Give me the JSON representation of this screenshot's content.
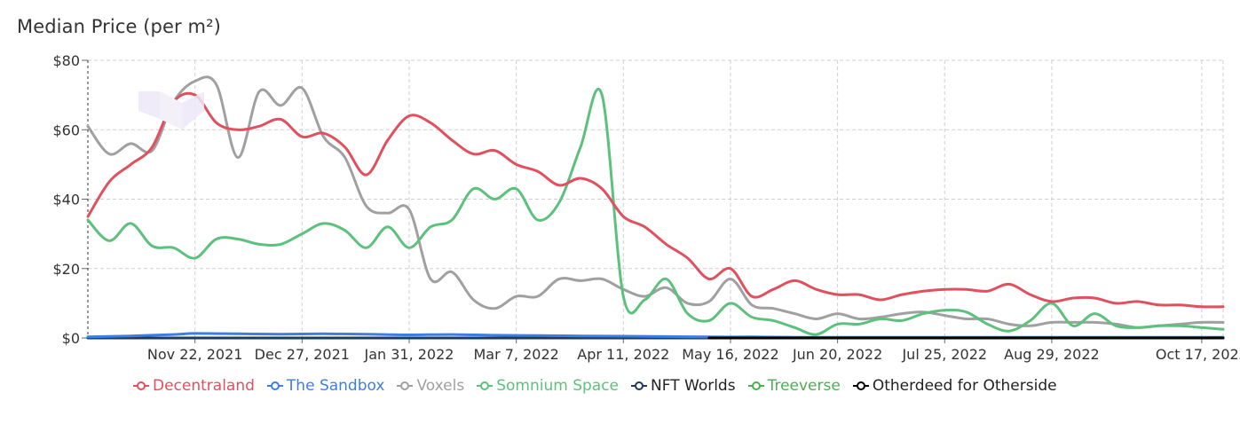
{
  "title": "Median Price (per m²)",
  "chart_data": {
    "type": "line",
    "title": "Median Price (per m²)",
    "x_tick_labels": [
      "Nov 22, 2021",
      "Dec 27, 2021",
      "Jan 31, 2022",
      "Mar 7, 2022",
      "Apr 11, 2022",
      "May 16, 2022",
      "Jun 20, 2022",
      "Jul 25, 2022",
      "Aug 29, 2022",
      "Oct 17, 2022"
    ],
    "x_tick_dates": [
      "2021-11-22",
      "2021-12-27",
      "2022-01-31",
      "2022-03-07",
      "2022-04-11",
      "2022-05-16",
      "2022-06-20",
      "2022-07-25",
      "2022-08-29",
      "2022-10-17"
    ],
    "x_range": [
      "2021-10-18",
      "2022-10-24"
    ],
    "y_ticks": [
      0,
      20,
      40,
      60,
      80
    ],
    "y_tick_labels": [
      "$0",
      "$20",
      "$40",
      "$60",
      "$80"
    ],
    "ylim": [
      0,
      80
    ],
    "grid": true,
    "legend_position": "bottom",
    "series": [
      {
        "name": "Decentraland",
        "color": "#e0505e",
        "x": [
          "2021-10-18",
          "2021-10-25",
          "2021-11-01",
          "2021-11-08",
          "2021-11-15",
          "2021-11-22",
          "2021-11-29",
          "2021-12-06",
          "2021-12-13",
          "2021-12-20",
          "2021-12-27",
          "2022-01-03",
          "2022-01-10",
          "2022-01-17",
          "2022-01-24",
          "2022-01-31",
          "2022-02-07",
          "2022-02-14",
          "2022-02-21",
          "2022-02-28",
          "2022-03-07",
          "2022-03-14",
          "2022-03-21",
          "2022-03-28",
          "2022-04-04",
          "2022-04-11",
          "2022-04-18",
          "2022-04-25",
          "2022-05-02",
          "2022-05-09",
          "2022-05-16",
          "2022-05-23",
          "2022-05-30",
          "2022-06-06",
          "2022-06-13",
          "2022-06-20",
          "2022-06-27",
          "2022-07-04",
          "2022-07-11",
          "2022-07-18",
          "2022-07-25",
          "2022-08-01",
          "2022-08-08",
          "2022-08-15",
          "2022-08-22",
          "2022-08-29",
          "2022-09-05",
          "2022-09-12",
          "2022-09-19",
          "2022-09-26",
          "2022-10-03",
          "2022-10-10",
          "2022-10-17",
          "2022-10-24"
        ],
        "y": [
          35,
          45,
          50,
          55,
          68,
          70,
          62,
          60,
          61,
          63,
          58,
          59,
          55,
          47,
          57,
          64,
          62,
          57,
          53,
          54,
          50,
          48,
          44,
          46,
          43,
          35,
          32,
          27,
          23,
          17,
          20,
          12,
          14,
          16.5,
          14,
          12.5,
          12.5,
          11,
          12.5,
          13.5,
          14,
          14,
          13.5,
          15.5,
          12.5,
          10.5,
          11.5,
          11.5,
          10,
          10.5,
          9.5,
          9.5,
          9,
          9
        ]
      },
      {
        "name": "The Sandbox",
        "color": "#3d7fe0",
        "x": [
          "2021-10-18",
          "2021-11-01",
          "2021-11-15",
          "2021-11-22",
          "2021-12-06",
          "2021-12-20",
          "2022-01-03",
          "2022-01-17",
          "2022-01-31",
          "2022-02-14",
          "2022-02-28",
          "2022-03-14",
          "2022-03-28",
          "2022-04-11",
          "2022-04-25",
          "2022-05-09",
          "2022-05-23",
          "2022-06-06",
          "2022-06-20",
          "2022-07-04",
          "2022-07-18",
          "2022-08-01",
          "2022-08-15",
          "2022-08-29",
          "2022-09-12",
          "2022-09-26",
          "2022-10-10",
          "2022-10-24"
        ],
        "y": [
          0.3,
          0.6,
          1.0,
          1.3,
          1.2,
          1.1,
          1.2,
          1.1,
          0.9,
          1.0,
          0.8,
          0.7,
          0.6,
          0.5,
          0.4,
          0.3,
          0.3,
          0.2,
          0.2,
          0.2,
          0.2,
          0.2,
          0.2,
          0.2,
          0.2,
          0.2,
          0.2,
          0.2
        ]
      },
      {
        "name": "Voxels",
        "color": "#a0a0a0",
        "x": [
          "2021-10-18",
          "2021-10-25",
          "2021-11-01",
          "2021-11-08",
          "2021-11-15",
          "2021-11-22",
          "2021-11-29",
          "2021-12-06",
          "2021-12-13",
          "2021-12-20",
          "2021-12-27",
          "2022-01-03",
          "2022-01-10",
          "2022-01-17",
          "2022-01-24",
          "2022-01-31",
          "2022-02-07",
          "2022-02-14",
          "2022-02-21",
          "2022-02-28",
          "2022-03-07",
          "2022-03-14",
          "2022-03-21",
          "2022-03-28",
          "2022-04-04",
          "2022-04-11",
          "2022-04-18",
          "2022-04-25",
          "2022-05-02",
          "2022-05-09",
          "2022-05-16",
          "2022-05-23",
          "2022-05-30",
          "2022-06-06",
          "2022-06-13",
          "2022-06-20",
          "2022-06-27",
          "2022-07-04",
          "2022-07-11",
          "2022-07-18",
          "2022-07-25",
          "2022-08-01",
          "2022-08-08",
          "2022-08-15",
          "2022-08-22",
          "2022-08-29",
          "2022-09-05",
          "2022-09-12",
          "2022-09-19",
          "2022-09-26",
          "2022-10-03",
          "2022-10-10",
          "2022-10-17",
          "2022-10-24"
        ],
        "y": [
          61,
          53,
          56,
          54,
          68,
          74,
          73,
          52,
          71,
          67,
          72,
          58,
          52,
          38,
          36,
          37,
          17,
          19,
          11,
          8.5,
          12,
          12,
          17,
          16.5,
          17,
          14,
          12,
          14.5,
          10,
          10.5,
          17,
          9.5,
          8.5,
          7,
          5.5,
          7,
          5.5,
          6,
          7,
          7.5,
          6.5,
          5.5,
          5.5,
          4,
          3.5,
          4.5,
          4.5,
          4.5,
          4,
          3,
          3.5,
          4,
          4.5,
          4.5
        ]
      },
      {
        "name": "Somnium Space",
        "color": "#5cc17c",
        "x": [
          "2021-10-18",
          "2021-10-25",
          "2021-11-01",
          "2021-11-08",
          "2021-11-15",
          "2021-11-22",
          "2021-11-29",
          "2021-12-06",
          "2021-12-13",
          "2021-12-20",
          "2021-12-27",
          "2022-01-03",
          "2022-01-10",
          "2022-01-17",
          "2022-01-24",
          "2022-01-31",
          "2022-02-07",
          "2022-02-14",
          "2022-02-21",
          "2022-02-28",
          "2022-03-07",
          "2022-03-14",
          "2022-03-21",
          "2022-03-28",
          "2022-04-04",
          "2022-04-11",
          "2022-04-18",
          "2022-04-25",
          "2022-05-02",
          "2022-05-09",
          "2022-05-16",
          "2022-05-23",
          "2022-05-30",
          "2022-06-06",
          "2022-06-13",
          "2022-06-20",
          "2022-06-27",
          "2022-07-04",
          "2022-07-11",
          "2022-07-18",
          "2022-07-25",
          "2022-08-01",
          "2022-08-08",
          "2022-08-15",
          "2022-08-22",
          "2022-08-29",
          "2022-09-05",
          "2022-09-12",
          "2022-09-19",
          "2022-09-26",
          "2022-10-03",
          "2022-10-10",
          "2022-10-17",
          "2022-10-24"
        ],
        "y": [
          34,
          28,
          33,
          26.5,
          26,
          23,
          28.5,
          28.5,
          27,
          27,
          30,
          33,
          31,
          26,
          32,
          26,
          32,
          34,
          43,
          40,
          43,
          34,
          39,
          55,
          70,
          12,
          11,
          17,
          7,
          5,
          10,
          6,
          5,
          3,
          1,
          4,
          4,
          5.5,
          5,
          7,
          8,
          7.5,
          4,
          2,
          5,
          10,
          3.5,
          7,
          3.5,
          3,
          3.5,
          3.5,
          3,
          2.5
        ]
      },
      {
        "name": "NFT Worlds",
        "color": "#1f3a5f",
        "x": [
          "2021-10-18",
          "2022-10-24"
        ],
        "y": [
          0,
          0
        ]
      },
      {
        "name": "Treeverse",
        "color": "#4caf50",
        "x": [
          "2021-10-18",
          "2022-10-24"
        ],
        "y": [
          0,
          0
        ]
      },
      {
        "name": "Otherdeed for Otherside",
        "color": "#000000",
        "x": [
          "2022-05-09",
          "2022-10-24"
        ],
        "y": [
          0,
          0
        ]
      }
    ]
  }
}
